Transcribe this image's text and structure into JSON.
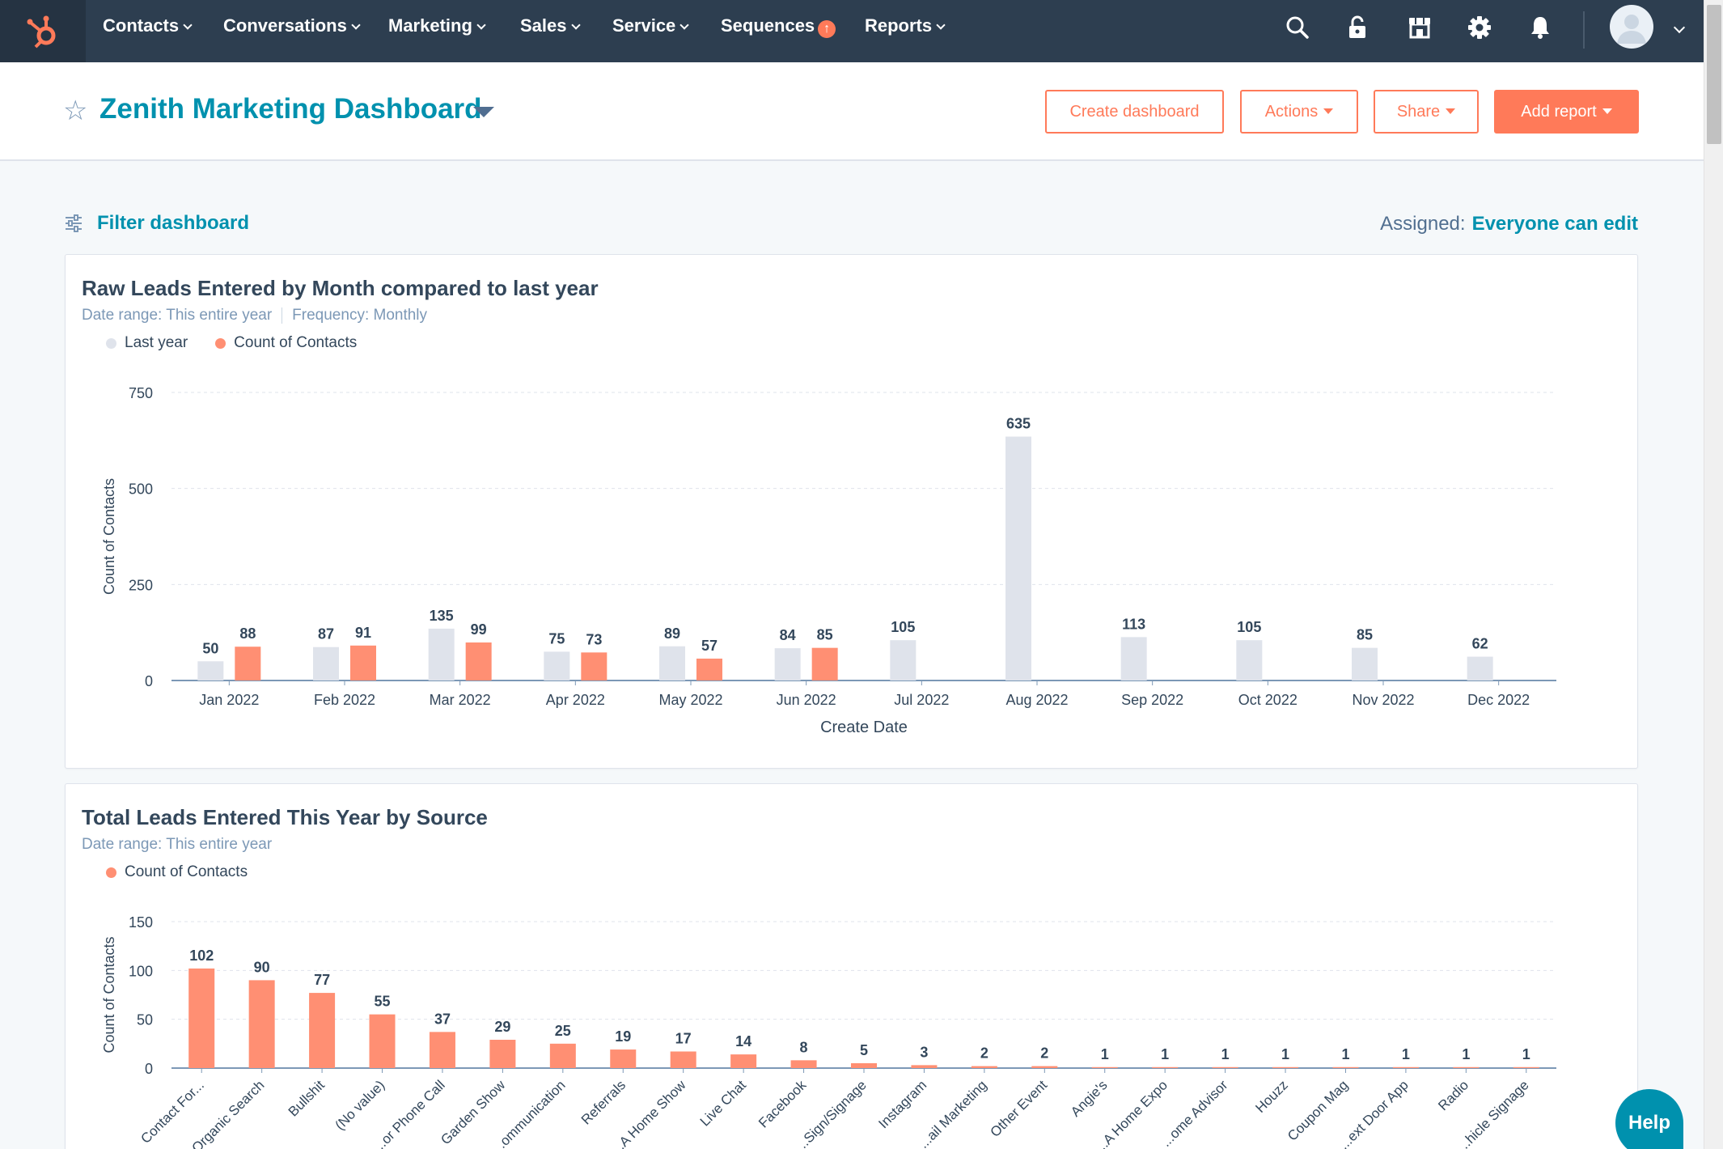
{
  "nav": {
    "items": [
      {
        "label": "Contacts"
      },
      {
        "label": "Conversations"
      },
      {
        "label": "Marketing"
      },
      {
        "label": "Sales"
      },
      {
        "label": "Service"
      },
      {
        "label": "Sequences"
      },
      {
        "label": "Reports"
      }
    ],
    "icons": [
      "search-icon",
      "unlock-icon",
      "marketplace-icon",
      "gear-icon",
      "bell-icon"
    ]
  },
  "header": {
    "title": "Zenith Marketing Dashboard",
    "buttons": {
      "create": "Create dashboard",
      "actions": "Actions",
      "share": "Share",
      "add_report": "Add report"
    }
  },
  "filter": {
    "label": "Filter dashboard",
    "assigned_label": "Assigned:",
    "assigned_value": "Everyone can edit"
  },
  "colors": {
    "accent": "#ff7a59",
    "link": "#0091ae",
    "nav_bg": "#2d3e50",
    "last_year_bar": "#dfe3eb",
    "contacts_bar": "#ff8f73"
  },
  "reports": [
    {
      "title": "Raw Leads Entered by Month compared to last year",
      "meta": {
        "date_range": "Date range: This entire year",
        "frequency": "Frequency: Monthly"
      },
      "legend": [
        "Last year",
        "Count of Contacts"
      ]
    },
    {
      "title": "Total Leads Entered This Year by Source",
      "meta": {
        "date_range": "Date range: This entire year"
      },
      "legend": [
        "Count of Contacts"
      ]
    }
  ],
  "help_label": "Help",
  "chart_data": [
    {
      "type": "bar",
      "title": "Raw Leads Entered by Month compared to last year",
      "xlabel": "Create Date",
      "ylabel": "Count of Contacts",
      "ylim": [
        0,
        750
      ],
      "yticks": [
        0,
        250,
        500,
        750
      ],
      "categories": [
        "Jan 2022",
        "Feb 2022",
        "Mar 2022",
        "Apr 2022",
        "May 2022",
        "Jun 2022",
        "Jul 2022",
        "Aug 2022",
        "Sep 2022",
        "Oct 2022",
        "Nov 2022",
        "Dec 2022"
      ],
      "series": [
        {
          "name": "Last year",
          "color": "#dfe3eb",
          "values": [
            50,
            87,
            135,
            75,
            89,
            84,
            105,
            635,
            113,
            105,
            85,
            62
          ]
        },
        {
          "name": "Count of Contacts",
          "color": "#ff8f73",
          "values": [
            88,
            91,
            99,
            73,
            57,
            85,
            null,
            null,
            null,
            null,
            null,
            null
          ]
        }
      ],
      "grid": true,
      "legend_position": "top-left"
    },
    {
      "type": "bar",
      "title": "Total Leads Entered This Year by Source",
      "xlabel": "",
      "ylabel": "Count of Contacts",
      "ylim": [
        0,
        150
      ],
      "yticks": [
        0,
        50,
        100,
        150
      ],
      "categories": [
        "Contact For...",
        "Organic Search",
        "Bullshit",
        "(No value)",
        "...or Phone Call",
        "Garden Show",
        "...ommunication",
        "Referrals",
        "...A Home Show",
        "Live Chat",
        "Facebook",
        "...Sign/Signage",
        "Instagram",
        "...ail Marketing",
        "Other Event",
        "Angie's",
        "...A Home Expo",
        "...ome Advisor",
        "Houzz",
        "Coupon Mag",
        "...ext Door App",
        "Radio",
        "...hicle Signage"
      ],
      "series": [
        {
          "name": "Count of Contacts",
          "color": "#ff8f73",
          "values": [
            102,
            90,
            77,
            55,
            37,
            29,
            25,
            19,
            17,
            14,
            8,
            5,
            3,
            2,
            2,
            1,
            1,
            1,
            1,
            1,
            1,
            1,
            1
          ]
        }
      ],
      "grid": true,
      "legend_position": "top-left"
    }
  ]
}
